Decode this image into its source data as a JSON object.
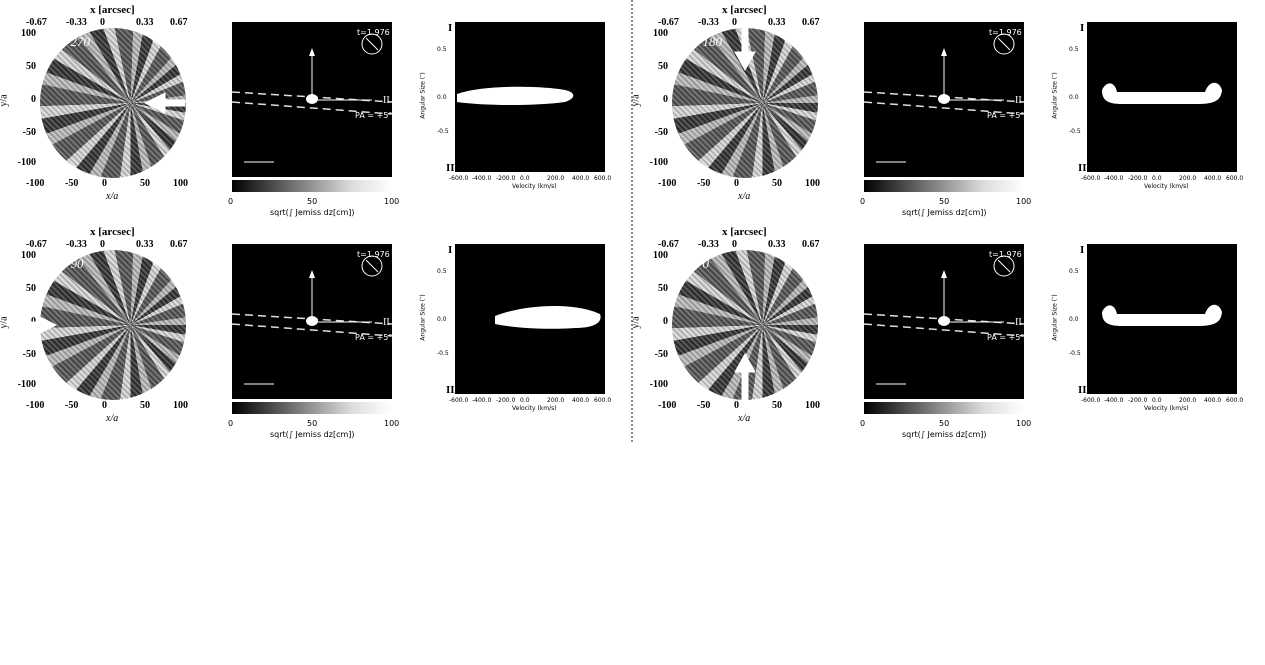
{
  "panels": [
    {
      "omega_label": "ω = 270",
      "arrow_dir": "left"
    },
    {
      "omega_label": "ω = 180",
      "arrow_dir": "down"
    },
    {
      "omega_label": "ω = 90",
      "arrow_dir": "right"
    },
    {
      "omega_label": "ω = 0",
      "arrow_dir": "up"
    }
  ],
  "common": {
    "top_axis_label": "x [arcsec]",
    "top_ticks": [
      "-0.67",
      "-0.33",
      "0",
      "0.33",
      "0.67"
    ],
    "left_ticks": [
      "100",
      "50",
      "0",
      "-50",
      "-100"
    ],
    "bottom_ticks": [
      "-100",
      "-50",
      "0",
      "50",
      "100"
    ],
    "xlabel": "x/a",
    "ylabel": "y/a",
    "time_label": "t=1.976",
    "colorbar_label": "sqrt(∫ Jemiss dz[cm])",
    "colorbar_ticks": [
      "0",
      "50",
      "100"
    ],
    "pv_ylabel": "Angular Size (″)",
    "pv_xlabel": "Velocity (km/s)",
    "pv_xticks": [
      "-600.0",
      "-400.0",
      "-200.0",
      "0.0",
      "200.0",
      "400.0",
      "600.0"
    ],
    "pv_yticks": [
      "0.5",
      "0.0",
      "-0.5"
    ],
    "slit_top": "I",
    "slit_bottom": "II"
  },
  "pa_labels": [
    "PA = +5°",
    "PA = +5°",
    "PA = +5°",
    "PA = +5°"
  ]
}
